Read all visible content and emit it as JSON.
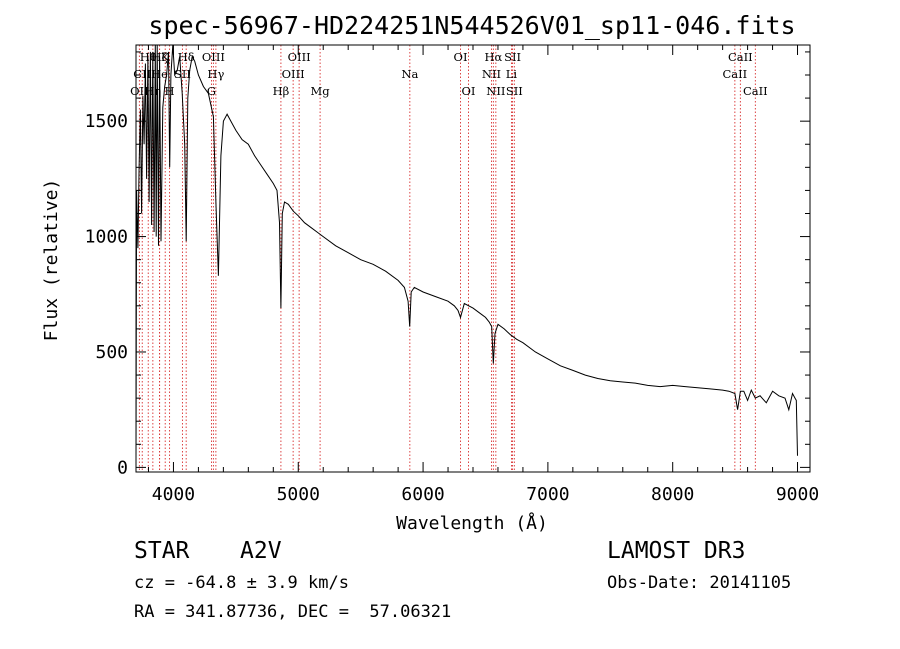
{
  "chart_data": {
    "type": "line",
    "title": "spec-56967-HD224251N544526V01_sp11-046.fits",
    "xlabel": "Wavelength (Å)",
    "ylabel": "Flux (relative)",
    "xlim": [
      3700,
      9100
    ],
    "ylim": [
      -20,
      1830
    ],
    "x_ticks": [
      4000,
      5000,
      6000,
      7000,
      8000,
      9000
    ],
    "y_ticks": [
      0,
      500,
      1000,
      1500
    ],
    "grid": false,
    "series": [
      {
        "name": "flux",
        "x": [
          3700,
          3705,
          3715,
          3725,
          3735,
          3745,
          3755,
          3765,
          3775,
          3785,
          3795,
          3805,
          3815,
          3825,
          3835,
          3845,
          3855,
          3862,
          3870,
          3880,
          3889,
          3900,
          3915,
          3930,
          3945,
          3960,
          3970,
          3980,
          3995,
          4010,
          4030,
          4050,
          4070,
          4090,
          4102,
          4115,
          4130,
          4150,
          4170,
          4200,
          4240,
          4280,
          4320,
          4340,
          4360,
          4380,
          4400,
          4430,
          4460,
          4500,
          4550,
          4600,
          4650,
          4700,
          4750,
          4800,
          4830,
          4850,
          4861,
          4872,
          4890,
          4920,
          4960,
          5000,
          5050,
          5100,
          5150,
          5200,
          5300,
          5400,
          5500,
          5600,
          5700,
          5800,
          5850,
          5880,
          5893,
          5905,
          5930,
          6000,
          6100,
          6200,
          6250,
          6280,
          6300,
          6330,
          6400,
          6450,
          6500,
          6530,
          6550,
          6563,
          6576,
          6600,
          6650,
          6700,
          6750,
          6800,
          6900,
          7000,
          7100,
          7200,
          7300,
          7400,
          7500,
          7600,
          7700,
          7800,
          7900,
          8000,
          8100,
          8200,
          8300,
          8400,
          8450,
          8498,
          8520,
          8542,
          8570,
          8600,
          8630,
          8662,
          8700,
          8750,
          8800,
          8850,
          8900,
          8930,
          8960,
          8980,
          8990,
          9000
        ],
        "y": [
          30,
          1200,
          950,
          1300,
          1550,
          1100,
          1610,
          1400,
          1750,
          1250,
          1780,
          1150,
          1800,
          1050,
          1800,
          1020,
          1850,
          1000,
          1830,
          960,
          1780,
          980,
          1560,
          1650,
          1700,
          1800,
          1300,
          1700,
          1850,
          1700,
          1720,
          1780,
          1620,
          1400,
          980,
          1600,
          1720,
          1780,
          1760,
          1700,
          1650,
          1620,
          1520,
          1150,
          830,
          1350,
          1500,
          1530,
          1500,
          1460,
          1420,
          1400,
          1350,
          1310,
          1270,
          1230,
          1200,
          1060,
          690,
          1100,
          1150,
          1140,
          1110,
          1090,
          1060,
          1040,
          1020,
          1000,
          960,
          930,
          900,
          880,
          850,
          810,
          780,
          720,
          610,
          760,
          780,
          760,
          740,
          720,
          700,
          680,
          650,
          710,
          690,
          670,
          650,
          630,
          610,
          450,
          580,
          620,
          600,
          575,
          555,
          540,
          500,
          470,
          440,
          420,
          400,
          385,
          375,
          370,
          365,
          355,
          350,
          355,
          350,
          345,
          340,
          335,
          330,
          320,
          250,
          330,
          330,
          290,
          335,
          300,
          310,
          280,
          330,
          310,
          300,
          250,
          320,
          300,
          290,
          50
        ]
      }
    ],
    "spectral_lines": [
      {
        "label": "OII",
        "x": 3727,
        "row": 3
      },
      {
        "label": "CII",
        "x": 3750,
        "row": 2
      },
      {
        "label": "Hθ",
        "x": 3798,
        "row": 1
      },
      {
        "label": "Hη",
        "x": 3835,
        "row": 3
      },
      {
        "label": "Hζ",
        "x": 3889,
        "row": 1
      },
      {
        "label": "He",
        "x": 3889,
        "row": 2
      },
      {
        "label": "K",
        "x": 3934,
        "row": 1
      },
      {
        "label": "H",
        "x": 3969,
        "row": 3
      },
      {
        "label": "SII",
        "x": 4072,
        "row": 2
      },
      {
        "label": "Hδ",
        "x": 4102,
        "row": 1
      },
      {
        "label": "G",
        "x": 4305,
        "row": 3
      },
      {
        "label": "OIII",
        "x": 4320,
        "row": 1
      },
      {
        "label": "Hγ",
        "x": 4340,
        "row": 2
      },
      {
        "label": "Hβ",
        "x": 4861,
        "row": 3
      },
      {
        "label": "OIII",
        "x": 4959,
        "row": 2
      },
      {
        "label": "OIII",
        "x": 5007,
        "row": 1
      },
      {
        "label": "Mg",
        "x": 5175,
        "row": 3
      },
      {
        "label": "Na",
        "x": 5894,
        "row": 2
      },
      {
        "label": "OI",
        "x": 6300,
        "row": 1
      },
      {
        "label": "OI",
        "x": 6364,
        "row": 3
      },
      {
        "label": "NII",
        "x": 6548,
        "row": 2
      },
      {
        "label": "Hα",
        "x": 6563,
        "row": 1
      },
      {
        "label": "NII",
        "x": 6583,
        "row": 3
      },
      {
        "label": "Li",
        "x": 6708,
        "row": 2
      },
      {
        "label": "SII",
        "x": 6717,
        "row": 1
      },
      {
        "label": "SII",
        "x": 6731,
        "row": 3
      },
      {
        "label": "CaII",
        "x": 8498,
        "row": 2
      },
      {
        "label": "CaII",
        "x": 8542,
        "row": 1
      },
      {
        "label": "CaII",
        "x": 8662,
        "row": 3
      }
    ]
  },
  "info": {
    "object_type": "STAR",
    "subclass": "A2V",
    "survey": "LAMOST DR3",
    "cz": "cz = -64.8 ± 3.9 km/s",
    "obs_date": "Obs-Date: 20141105",
    "coords": "RA = 341.87736, DEC =  57.06321"
  }
}
